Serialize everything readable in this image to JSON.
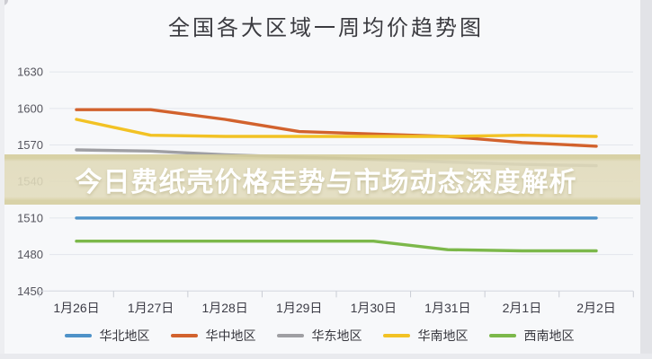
{
  "page": {
    "background": "#f7f8fa"
  },
  "banner": {
    "text": "今日费纸壳价格走势与市场动态深度解析",
    "bg_main": "#e0dab9",
    "bg_edge": "#d5cfa2",
    "text_color": "#ffffff"
  },
  "chart_data": {
    "type": "line",
    "title": "全国各大区域一周均价趋势图",
    "categories": [
      "1月26日",
      "1月27日",
      "1月28日",
      "1月29日",
      "1月30日",
      "1月31日",
      "2月1日",
      "2月2日"
    ],
    "y_ticks": [
      1630,
      1600,
      1570,
      1540,
      1510,
      1480,
      1450
    ],
    "ylim": [
      1440,
      1650
    ],
    "xlabel": "",
    "ylabel": "",
    "grid": true,
    "legend_position": "bottom",
    "series": [
      {
        "name": "华北地区",
        "color": "#4e92c8",
        "values": [
          1510,
          1510,
          1510,
          1510,
          1510,
          1510,
          1510,
          1510
        ]
      },
      {
        "name": "华中地区",
        "color": "#d2622d",
        "values": [
          1599,
          1599,
          1591,
          1581,
          1579,
          1577,
          1572,
          1569
        ]
      },
      {
        "name": "华东地区",
        "color": "#9f9fa3",
        "values": [
          1566,
          1565,
          1562,
          1560,
          1558,
          1556,
          1554,
          1553
        ]
      },
      {
        "name": "华南地区",
        "color": "#f2c224",
        "values": [
          1591,
          1578,
          1577,
          1577,
          1577,
          1577,
          1578,
          1577
        ]
      },
      {
        "name": "西南地区",
        "color": "#7cb84a",
        "values": [
          1491,
          1491,
          1491,
          1491,
          1491,
          1484,
          1483,
          1483
        ]
      }
    ]
  }
}
